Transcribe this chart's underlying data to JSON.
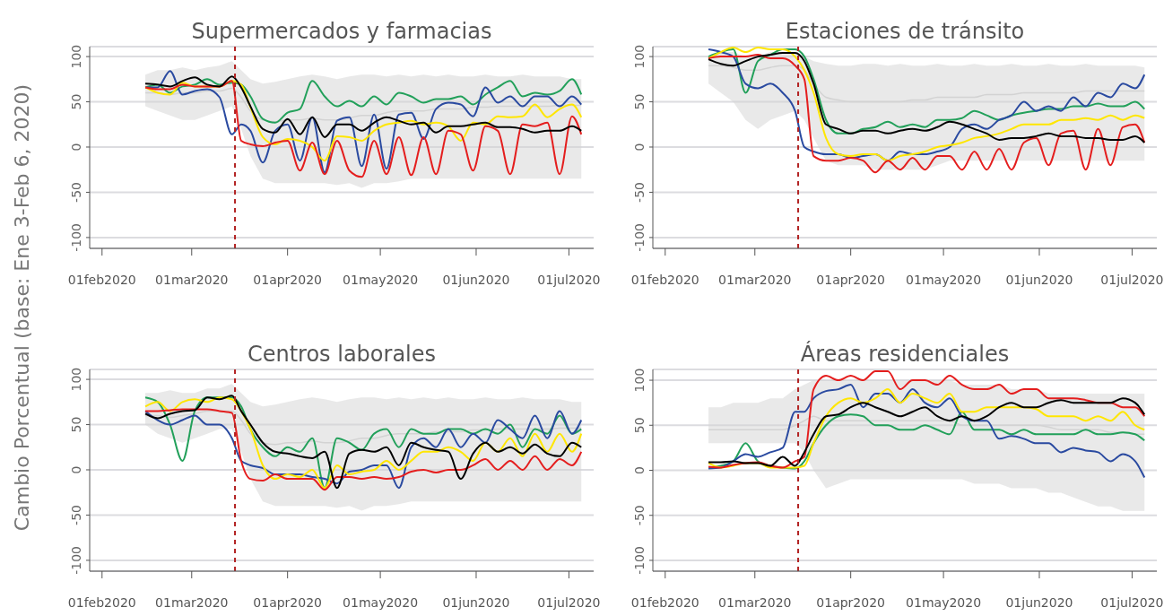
{
  "chart_data": [
    {
      "type": "line",
      "title": "Supermercados y farmacias",
      "ylabel": "Cambio Porcentual (base: Ene 3-Feb 6, 2020)",
      "grid": "y",
      "xlim": [
        "2020-01-28",
        "2020-07-09"
      ],
      "ylim": [
        -112,
        111
      ],
      "yticks": [
        -100,
        -50,
        0,
        50,
        100
      ],
      "xticks": [
        {
          "value": "2020-02-01",
          "label": "01feb2020"
        },
        {
          "value": "2020-03-01",
          "label": "01mar2020"
        },
        {
          "value": "2020-04-01",
          "label": "01apr2020"
        },
        {
          "value": "2020-05-01",
          "label": "01may2020"
        },
        {
          "value": "2020-06-01",
          "label": "01jun2020"
        },
        {
          "value": "2020-07-01",
          "label": "01jul2020"
        }
      ],
      "ref_lines": [
        {
          "axis": "x",
          "value": "2020-03-15",
          "color": "#b22222",
          "line_style": "dashed"
        }
      ],
      "x": [
        "2020-02-15",
        "2020-02-19",
        "2020-02-23",
        "2020-02-27",
        "2020-03-02",
        "2020-03-06",
        "2020-03-10",
        "2020-03-14",
        "2020-03-17",
        "2020-03-20",
        "2020-03-24",
        "2020-03-28",
        "2020-04-01",
        "2020-04-05",
        "2020-04-09",
        "2020-04-13",
        "2020-04-17",
        "2020-04-21",
        "2020-04-25",
        "2020-04-29",
        "2020-05-03",
        "2020-05-07",
        "2020-05-11",
        "2020-05-15",
        "2020-05-19",
        "2020-05-23",
        "2020-05-27",
        "2020-05-31",
        "2020-06-04",
        "2020-06-08",
        "2020-06-12",
        "2020-06-16",
        "2020-06-20",
        "2020-06-24",
        "2020-06-28",
        "2020-07-02",
        "2020-07-05"
      ],
      "series": [
        {
          "color": "#d3d3d3",
          "values": [
            60,
            60,
            58,
            60,
            60,
            62,
            62,
            65,
            55,
            40,
            30,
            28,
            30,
            30,
            32,
            30,
            30,
            32,
            35,
            35,
            38,
            40,
            40,
            40,
            42,
            42,
            42,
            44,
            44,
            45,
            45,
            45,
            45,
            45,
            46,
            46,
            46
          ],
          "lower": [
            45,
            40,
            35,
            30,
            30,
            35,
            40,
            45,
            20,
            -10,
            -35,
            -40,
            -40,
            -40,
            -40,
            -40,
            -42,
            -40,
            -45,
            -40,
            -40,
            -38,
            -35,
            -35,
            -35,
            -35,
            -35,
            -35,
            -35,
            -35,
            -35,
            -35,
            -35,
            -35,
            -35,
            -35,
            -35
          ],
          "upper": [
            80,
            85,
            85,
            88,
            85,
            88,
            90,
            95,
            85,
            75,
            70,
            72,
            75,
            78,
            80,
            78,
            75,
            78,
            80,
            80,
            78,
            80,
            78,
            80,
            78,
            80,
            78,
            78,
            80,
            78,
            78,
            80,
            78,
            78,
            78,
            75,
            75
          ]
        },
        {
          "color": "#22a05a",
          "values": [
            66,
            69,
            60,
            67,
            69,
            75,
            69,
            71,
            69,
            56,
            31,
            27,
            38,
            42,
            73,
            56,
            45,
            51,
            45,
            56,
            47,
            60,
            56,
            49,
            53,
            53,
            56,
            47,
            58,
            66,
            73,
            56,
            60,
            58,
            62,
            75,
            58
          ]
        },
        {
          "color": "#2a4aa0",
          "values": [
            66,
            66,
            84,
            58,
            62,
            64,
            55,
            14,
            25,
            18,
            -17,
            18,
            25,
            -15,
            33,
            -28,
            29,
            33,
            -21,
            36,
            -24,
            36,
            38,
            9,
            42,
            49,
            47,
            34,
            66,
            49,
            56,
            45,
            56,
            56,
            45,
            56,
            47
          ]
        },
        {
          "color": "#ffe600",
          "values": [
            66,
            60,
            58,
            71,
            67,
            67,
            67,
            73,
            69,
            44,
            11,
            3,
            9,
            7,
            0,
            -15,
            12,
            11,
            7,
            18,
            25,
            27,
            29,
            25,
            27,
            23,
            7,
            27,
            25,
            34,
            33,
            34,
            47,
            33,
            42,
            47,
            33
          ]
        },
        {
          "color": "#e41e1e",
          "values": [
            66,
            64,
            64,
            69,
            67,
            67,
            67,
            73,
            7,
            3,
            1,
            5,
            7,
            -26,
            5,
            -30,
            7,
            -26,
            -33,
            7,
            -30,
            11,
            -31,
            11,
            -30,
            18,
            14,
            -26,
            23,
            18,
            -30,
            25,
            23,
            27,
            -30,
            34,
            14
          ]
        },
        {
          "color": "#000000",
          "values": [
            70,
            69,
            67,
            73,
            77,
            69,
            67,
            78,
            66,
            45,
            20,
            16,
            31,
            14,
            33,
            11,
            25,
            25,
            18,
            27,
            33,
            29,
            25,
            27,
            16,
            23,
            23,
            25,
            27,
            22,
            22,
            20,
            16,
            18,
            18,
            23,
            18
          ]
        }
      ]
    },
    {
      "type": "line",
      "title": "Estaciones de tránsito",
      "grid": "y",
      "xlim": [
        "2020-01-28",
        "2020-07-09"
      ],
      "ylim": [
        -112,
        111
      ],
      "yticks": [
        -100,
        -50,
        0,
        50,
        100
      ],
      "xticks": [
        {
          "value": "2020-02-01",
          "label": "01feb2020"
        },
        {
          "value": "2020-03-01",
          "label": "01mar2020"
        },
        {
          "value": "2020-04-01",
          "label": "01apr2020"
        },
        {
          "value": "2020-05-01",
          "label": "01may2020"
        },
        {
          "value": "2020-06-01",
          "label": "01jun2020"
        },
        {
          "value": "2020-07-01",
          "label": "01jul2020"
        }
      ],
      "ref_lines": [
        {
          "axis": "x",
          "value": "2020-03-15",
          "color": "#b22222",
          "line_style": "dashed"
        }
      ],
      "x": [
        "2020-02-15",
        "2020-02-19",
        "2020-02-23",
        "2020-02-27",
        "2020-03-02",
        "2020-03-06",
        "2020-03-10",
        "2020-03-14",
        "2020-03-17",
        "2020-03-20",
        "2020-03-24",
        "2020-03-28",
        "2020-04-01",
        "2020-04-05",
        "2020-04-09",
        "2020-04-13",
        "2020-04-17",
        "2020-04-21",
        "2020-04-25",
        "2020-04-29",
        "2020-05-03",
        "2020-05-07",
        "2020-05-11",
        "2020-05-15",
        "2020-05-19",
        "2020-05-23",
        "2020-05-27",
        "2020-05-31",
        "2020-06-04",
        "2020-06-08",
        "2020-06-12",
        "2020-06-16",
        "2020-06-20",
        "2020-06-24",
        "2020-06-28",
        "2020-07-02",
        "2020-07-05"
      ],
      "series": [
        {
          "color": "#d3d3d3",
          "values": [
            90,
            90,
            88,
            85,
            85,
            88,
            90,
            90,
            85,
            70,
            55,
            52,
            50,
            50,
            50,
            50,
            50,
            52,
            52,
            55,
            55,
            55,
            55,
            58,
            58,
            58,
            60,
            60,
            60,
            60,
            60,
            62,
            62,
            62,
            62,
            62,
            62
          ],
          "lower": [
            70,
            60,
            50,
            30,
            20,
            30,
            35,
            40,
            30,
            10,
            -15,
            -20,
            -20,
            -20,
            -25,
            -25,
            -25,
            -25,
            -25,
            -20,
            -15,
            -15,
            -15,
            -15,
            -15,
            -15,
            -15,
            -15,
            -15,
            -15,
            -15,
            -15,
            -15,
            -15,
            -15,
            -15,
            -15
          ],
          "upper": [
            100,
            105,
            105,
            100,
            100,
            105,
            105,
            105,
            100,
            95,
            92,
            90,
            90,
            92,
            92,
            90,
            92,
            90,
            90,
            92,
            90,
            90,
            92,
            90,
            90,
            92,
            90,
            90,
            92,
            90,
            90,
            92,
            90,
            90,
            90,
            90,
            88
          ]
        },
        {
          "color": "#22a05a",
          "values": [
            100,
            105,
            108,
            60,
            95,
            102,
            108,
            108,
            100,
            75,
            30,
            15,
            15,
            20,
            22,
            28,
            22,
            25,
            22,
            30,
            30,
            32,
            40,
            35,
            30,
            35,
            38,
            40,
            42,
            42,
            45,
            45,
            48,
            45,
            45,
            50,
            42
          ]
        },
        {
          "color": "#2a4aa0",
          "values": [
            108,
            105,
            100,
            70,
            65,
            70,
            60,
            40,
            0,
            -5,
            -8,
            -8,
            -12,
            -10,
            -8,
            -15,
            -5,
            -8,
            -8,
            -5,
            0,
            20,
            25,
            20,
            30,
            35,
            50,
            40,
            45,
            40,
            55,
            45,
            60,
            55,
            70,
            65,
            80
          ]
        },
        {
          "color": "#ffe600",
          "values": [
            98,
            105,
            110,
            105,
            110,
            108,
            108,
            100,
            85,
            60,
            10,
            -8,
            -10,
            -8,
            -8,
            -15,
            -10,
            -8,
            -5,
            0,
            2,
            5,
            10,
            12,
            15,
            20,
            25,
            25,
            25,
            30,
            30,
            32,
            30,
            35,
            30,
            35,
            32
          ]
        },
        {
          "color": "#e41e1e",
          "values": [
            98,
            100,
            100,
            100,
            102,
            98,
            98,
            90,
            75,
            -10,
            -15,
            -15,
            -12,
            -15,
            -28,
            -15,
            -25,
            -12,
            -25,
            -10,
            -10,
            -25,
            -5,
            -25,
            -2,
            -25,
            5,
            10,
            -20,
            15,
            18,
            -25,
            20,
            -20,
            22,
            25,
            5
          ]
        },
        {
          "color": "#000000",
          "values": [
            97,
            92,
            90,
            95,
            100,
            102,
            104,
            104,
            95,
            70,
            25,
            20,
            15,
            18,
            18,
            15,
            18,
            20,
            18,
            22,
            28,
            25,
            20,
            15,
            8,
            10,
            10,
            12,
            15,
            12,
            12,
            10,
            10,
            8,
            8,
            12,
            5
          ]
        }
      ]
    },
    {
      "type": "line",
      "title": "Centros laborales",
      "grid": "y",
      "xlim": [
        "2020-01-28",
        "2020-07-09"
      ],
      "ylim": [
        -112,
        111
      ],
      "yticks": [
        -100,
        -50,
        0,
        50,
        100
      ],
      "xticks": [
        {
          "value": "2020-02-01",
          "label": "01feb2020"
        },
        {
          "value": "2020-03-01",
          "label": "01mar2020"
        },
        {
          "value": "2020-04-01",
          "label": "01apr2020"
        },
        {
          "value": "2020-05-01",
          "label": "01may2020"
        },
        {
          "value": "2020-06-01",
          "label": "01jun2020"
        },
        {
          "value": "2020-07-01",
          "label": "01jul2020"
        }
      ],
      "ref_lines": [
        {
          "axis": "x",
          "value": "2020-03-15",
          "color": "#b22222",
          "line_style": "dashed"
        }
      ],
      "x": [
        "2020-02-15",
        "2020-02-19",
        "2020-02-23",
        "2020-02-27",
        "2020-03-02",
        "2020-03-06",
        "2020-03-10",
        "2020-03-14",
        "2020-03-17",
        "2020-03-20",
        "2020-03-24",
        "2020-03-28",
        "2020-04-01",
        "2020-04-05",
        "2020-04-09",
        "2020-04-13",
        "2020-04-17",
        "2020-04-21",
        "2020-04-25",
        "2020-04-29",
        "2020-05-03",
        "2020-05-07",
        "2020-05-11",
        "2020-05-15",
        "2020-05-19",
        "2020-05-23",
        "2020-05-27",
        "2020-05-31",
        "2020-06-04",
        "2020-06-08",
        "2020-06-12",
        "2020-06-16",
        "2020-06-20",
        "2020-06-24",
        "2020-06-28",
        "2020-07-02",
        "2020-07-05"
      ],
      "series": [
        {
          "color": "#d3d3d3",
          "values": [
            60,
            60,
            58,
            60,
            62,
            65,
            65,
            65,
            55,
            40,
            30,
            28,
            30,
            30,
            32,
            30,
            30,
            32,
            35,
            35,
            38,
            40,
            40,
            40,
            42,
            42,
            42,
            44,
            44,
            45,
            45,
            45,
            45,
            45,
            46,
            46,
            46
          ],
          "lower": [
            50,
            40,
            35,
            30,
            35,
            40,
            45,
            45,
            20,
            -10,
            -35,
            -40,
            -40,
            -40,
            -40,
            -40,
            -42,
            -40,
            -45,
            -40,
            -40,
            -38,
            -35,
            -35,
            -35,
            -35,
            -35,
            -35,
            -35,
            -35,
            -35,
            -35,
            -35,
            -35,
            -35,
            -35,
            -35
          ],
          "upper": [
            85,
            85,
            88,
            85,
            85,
            90,
            90,
            95,
            85,
            75,
            70,
            72,
            75,
            78,
            80,
            78,
            75,
            78,
            80,
            80,
            78,
            80,
            78,
            80,
            78,
            80,
            78,
            78,
            80,
            78,
            78,
            80,
            78,
            78,
            78,
            75,
            75
          ]
        },
        {
          "color": "#22a05a",
          "values": [
            80,
            75,
            50,
            10,
            65,
            80,
            80,
            80,
            70,
            45,
            25,
            15,
            25,
            20,
            35,
            -20,
            35,
            30,
            22,
            40,
            45,
            25,
            45,
            40,
            40,
            45,
            45,
            40,
            45,
            40,
            50,
            25,
            45,
            40,
            60,
            40,
            45
          ]
        },
        {
          "color": "#2a4aa0",
          "values": [
            65,
            55,
            50,
            55,
            60,
            50,
            50,
            35,
            10,
            5,
            2,
            -5,
            -5,
            -5,
            -8,
            -10,
            -15,
            -2,
            0,
            5,
            5,
            -20,
            25,
            35,
            25,
            45,
            25,
            40,
            30,
            55,
            45,
            35,
            60,
            35,
            65,
            40,
            55
          ]
        },
        {
          "color": "#ffe600",
          "values": [
            70,
            75,
            65,
            75,
            78,
            75,
            80,
            78,
            65,
            45,
            5,
            -10,
            -5,
            -8,
            0,
            -20,
            5,
            -5,
            -2,
            0,
            10,
            0,
            10,
            20,
            20,
            25,
            20,
            10,
            30,
            20,
            35,
            15,
            40,
            20,
            40,
            20,
            40
          ]
        },
        {
          "color": "#e41e1e",
          "values": [
            65,
            65,
            66,
            67,
            67,
            67,
            65,
            63,
            10,
            -10,
            -12,
            -5,
            -10,
            -10,
            -10,
            -22,
            -8,
            -8,
            -10,
            -8,
            -10,
            -8,
            -2,
            0,
            -3,
            0,
            0,
            5,
            12,
            0,
            10,
            0,
            15,
            0,
            12,
            5,
            20
          ]
        },
        {
          "color": "#000000",
          "values": [
            62,
            57,
            62,
            65,
            66,
            80,
            78,
            82,
            65,
            50,
            30,
            20,
            18,
            15,
            13,
            20,
            -20,
            18,
            22,
            20,
            25,
            5,
            30,
            25,
            22,
            20,
            -10,
            18,
            30,
            20,
            25,
            18,
            28,
            18,
            15,
            30,
            25
          ]
        }
      ]
    },
    {
      "type": "line",
      "title": "Áreas residenciales",
      "grid": "y",
      "xlim": [
        "2020-01-28",
        "2020-07-09"
      ],
      "ylim": [
        -112,
        112
      ],
      "yticks": [
        -100,
        -50,
        0,
        50,
        100
      ],
      "xticks": [
        {
          "value": "2020-02-01",
          "label": "01feb2020"
        },
        {
          "value": "2020-03-01",
          "label": "01mar2020"
        },
        {
          "value": "2020-04-01",
          "label": "01apr2020"
        },
        {
          "value": "2020-05-01",
          "label": "01may2020"
        },
        {
          "value": "2020-06-01",
          "label": "01jun2020"
        },
        {
          "value": "2020-07-01",
          "label": "01jul2020"
        }
      ],
      "ref_lines": [
        {
          "axis": "x",
          "value": "2020-03-15",
          "color": "#b22222",
          "line_style": "dashed"
        }
      ],
      "x": [
        "2020-02-15",
        "2020-02-19",
        "2020-02-23",
        "2020-02-27",
        "2020-03-02",
        "2020-03-06",
        "2020-03-10",
        "2020-03-14",
        "2020-03-17",
        "2020-03-20",
        "2020-03-24",
        "2020-03-28",
        "2020-04-01",
        "2020-04-05",
        "2020-04-09",
        "2020-04-13",
        "2020-04-17",
        "2020-04-21",
        "2020-04-25",
        "2020-04-29",
        "2020-05-03",
        "2020-05-07",
        "2020-05-11",
        "2020-05-15",
        "2020-05-19",
        "2020-05-23",
        "2020-05-27",
        "2020-05-31",
        "2020-06-04",
        "2020-06-08",
        "2020-06-12",
        "2020-06-16",
        "2020-06-20",
        "2020-06-24",
        "2020-06-28",
        "2020-07-02",
        "2020-07-05"
      ],
      "series": [
        {
          "color": "#d3d3d3",
          "values": [
            45,
            45,
            45,
            45,
            45,
            45,
            45,
            50,
            55,
            60,
            55,
            55,
            55,
            55,
            55,
            55,
            55,
            55,
            55,
            55,
            55,
            50,
            50,
            50,
            50,
            50,
            50,
            50,
            48,
            45,
            45,
            45,
            45,
            42,
            42,
            40,
            40
          ],
          "lower": [
            30,
            30,
            30,
            30,
            30,
            30,
            30,
            30,
            20,
            0,
            -20,
            -15,
            -10,
            -10,
            -10,
            -10,
            -10,
            -10,
            -10,
            -10,
            -10,
            -10,
            -15,
            -15,
            -15,
            -20,
            -20,
            -20,
            -25,
            -25,
            -30,
            -35,
            -40,
            -40,
            -45,
            -45,
            -45
          ],
          "upper": [
            70,
            70,
            75,
            75,
            75,
            80,
            80,
            90,
            95,
            100,
            100,
            100,
            100,
            100,
            100,
            100,
            100,
            100,
            100,
            100,
            100,
            95,
            95,
            95,
            95,
            90,
            90,
            90,
            85,
            85,
            85,
            85,
            85,
            85,
            85,
            85,
            85
          ]
        },
        {
          "color": "#22a05a",
          "values": [
            3,
            5,
            10,
            30,
            10,
            5,
            3,
            2,
            10,
            30,
            50,
            60,
            62,
            60,
            50,
            50,
            45,
            45,
            50,
            45,
            40,
            65,
            45,
            45,
            45,
            40,
            45,
            40,
            40,
            40,
            40,
            45,
            40,
            40,
            42,
            40,
            33
          ]
        },
        {
          "color": "#2a4aa0",
          "values": [
            2,
            3,
            10,
            18,
            15,
            20,
            25,
            65,
            65,
            80,
            88,
            90,
            95,
            70,
            85,
            85,
            75,
            90,
            75,
            70,
            80,
            60,
            55,
            55,
            35,
            38,
            35,
            30,
            30,
            20,
            25,
            22,
            20,
            10,
            18,
            10,
            -8
          ]
        },
        {
          "color": "#ffe600",
          "values": [
            8,
            3,
            5,
            8,
            8,
            3,
            3,
            3,
            5,
            30,
            60,
            75,
            80,
            75,
            80,
            90,
            75,
            85,
            80,
            75,
            85,
            65,
            65,
            70,
            70,
            70,
            70,
            68,
            60,
            60,
            60,
            55,
            60,
            55,
            65,
            50,
            45
          ]
        },
        {
          "color": "#e41e1e",
          "values": [
            4,
            3,
            6,
            8,
            9,
            5,
            3,
            10,
            15,
            90,
            105,
            100,
            105,
            100,
            110,
            110,
            90,
            100,
            100,
            95,
            105,
            95,
            90,
            90,
            95,
            85,
            90,
            90,
            80,
            80,
            80,
            78,
            75,
            75,
            70,
            70,
            60
          ]
        },
        {
          "color": "#000000",
          "values": [
            9,
            9,
            10,
            8,
            8,
            5,
            15,
            5,
            20,
            40,
            60,
            62,
            70,
            75,
            70,
            65,
            60,
            65,
            70,
            60,
            55,
            60,
            55,
            60,
            70,
            75,
            70,
            70,
            75,
            78,
            75,
            75,
            75,
            75,
            80,
            75,
            62
          ]
        }
      ]
    }
  ]
}
